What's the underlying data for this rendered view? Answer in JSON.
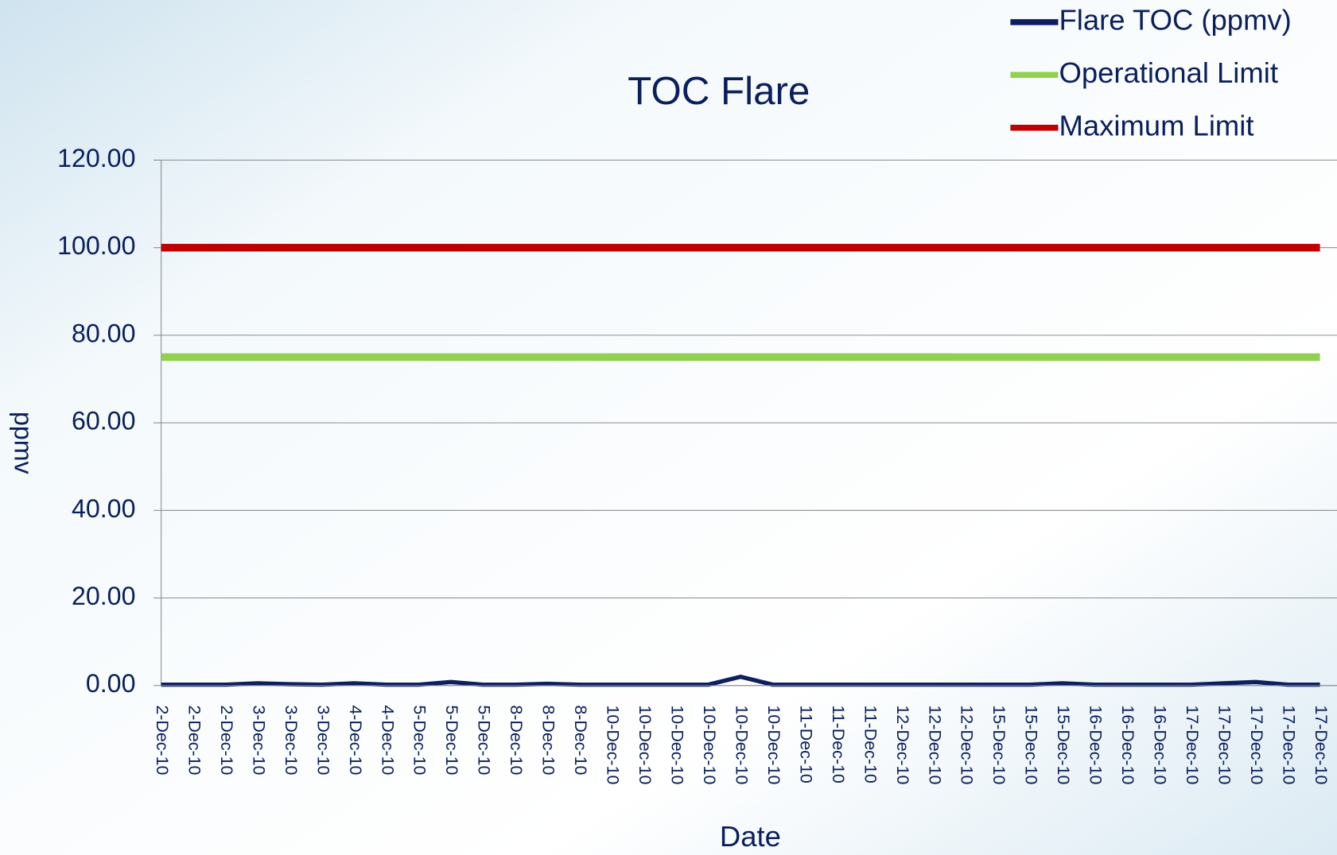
{
  "chart_data": {
    "type": "line",
    "title": "TOC Flare",
    "x_label": "Date",
    "y_label": "ppmv",
    "categories": [
      "2-Dec-10",
      "2-Dec-10",
      "2-Dec-10",
      "3-Dec-10",
      "3-Dec-10",
      "3-Dec-10",
      "4-Dec-10",
      "4-Dec-10",
      "5-Dec-10",
      "5-Dec-10",
      "5-Dec-10",
      "8-Dec-10",
      "8-Dec-10",
      "8-Dec-10",
      "10-Dec-10",
      "10-Dec-10",
      "10-Dec-10",
      "10-Dec-10",
      "10-Dec-10",
      "10-Dec-10",
      "11-Dec-10",
      "11-Dec-10",
      "11-Dec-10",
      "12-Dec-10",
      "12-Dec-10",
      "12-Dec-10",
      "15-Dec-10",
      "15-Dec-10",
      "15-Dec-10",
      "16-Dec-10",
      "16-Dec-10",
      "16-Dec-10",
      "17-Dec-10",
      "17-Dec-10",
      "17-Dec-10",
      "17-Dec-10",
      "17-Dec-10"
    ],
    "series": [
      {
        "name": "Flare TOC (ppmv)",
        "color": "#0d1f5e",
        "width": 5,
        "values": [
          0.2,
          0.2,
          0.2,
          0.5,
          0.3,
          0.2,
          0.5,
          0.2,
          0.2,
          0.8,
          0.2,
          0.2,
          0.4,
          0.2,
          0.2,
          0.2,
          0.2,
          0.2,
          2.0,
          0.2,
          0.2,
          0.2,
          0.2,
          0.2,
          0.2,
          0.2,
          0.2,
          0.2,
          0.5,
          0.2,
          0.2,
          0.2,
          0.2,
          0.5,
          0.8,
          0.2,
          0.2
        ]
      },
      {
        "name": "Operational Limit",
        "color": "#92d050",
        "width": 9,
        "values": [
          75,
          75,
          75,
          75,
          75,
          75,
          75,
          75,
          75,
          75,
          75,
          75,
          75,
          75,
          75,
          75,
          75,
          75,
          75,
          75,
          75,
          75,
          75,
          75,
          75,
          75,
          75,
          75,
          75,
          75,
          75,
          75,
          75,
          75,
          75,
          75,
          75
        ]
      },
      {
        "name": "Maximum Limit",
        "color": "#c00000",
        "width": 9,
        "values": [
          100,
          100,
          100,
          100,
          100,
          100,
          100,
          100,
          100,
          100,
          100,
          100,
          100,
          100,
          100,
          100,
          100,
          100,
          100,
          100,
          100,
          100,
          100,
          100,
          100,
          100,
          100,
          100,
          100,
          100,
          100,
          100,
          100,
          100,
          100,
          100,
          100
        ]
      }
    ],
    "ylim": [
      0,
      120
    ],
    "yticks": [
      {
        "value": 0,
        "label": "0.00"
      },
      {
        "value": 20,
        "label": "20.00"
      },
      {
        "value": 40,
        "label": "40.00"
      },
      {
        "value": 60,
        "label": "60.00"
      },
      {
        "value": 80,
        "label": "80.00"
      },
      {
        "value": 100,
        "label": "100.00"
      },
      {
        "value": 120,
        "label": "120.00"
      }
    ],
    "grid": true,
    "legend": "top-right"
  }
}
